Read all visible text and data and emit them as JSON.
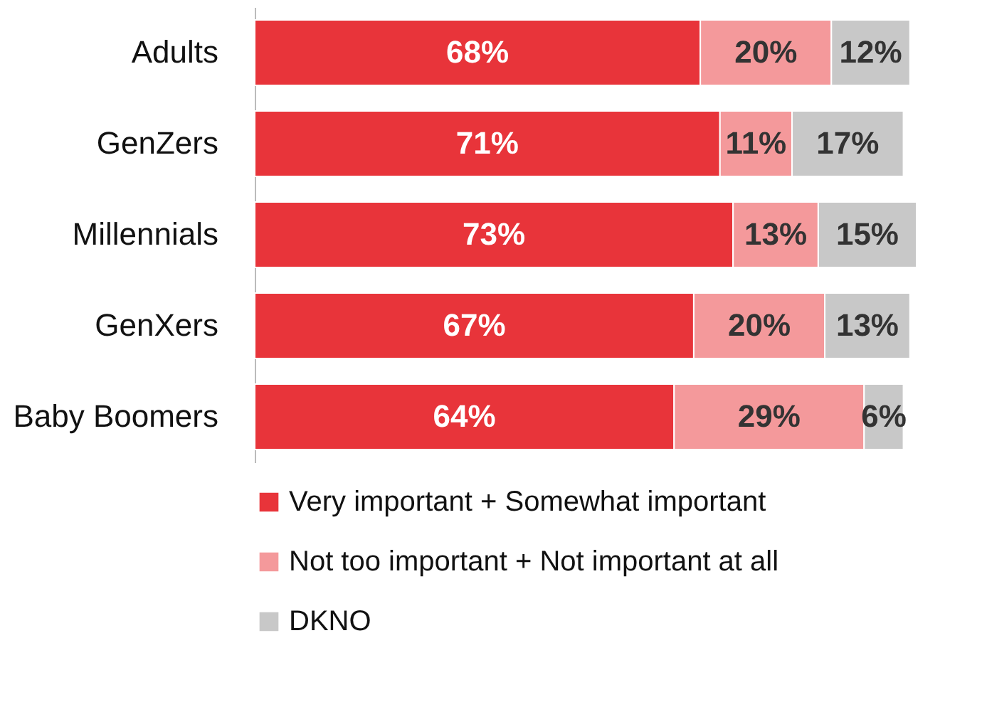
{
  "chart_data": {
    "type": "bar",
    "orientation": "horizontal",
    "stacked": true,
    "legend": "bottom",
    "categories": [
      "Adults",
      "GenZers",
      "Millennials",
      "GenXers",
      "Baby Boomers"
    ],
    "series": [
      {
        "name": "Very important + Somewhat important",
        "color": "#e8343a",
        "values": [
          68,
          71,
          73,
          67,
          64
        ],
        "value_labels": [
          "68%",
          "71%",
          "73%",
          "67%",
          "64%"
        ]
      },
      {
        "name": "Not too important + Not important at all",
        "color": "#f4999b",
        "values": [
          20,
          11,
          13,
          20,
          29
        ],
        "value_labels": [
          "20%",
          "11%",
          "13%",
          "20%",
          "29%"
        ]
      },
      {
        "name": "DKNO",
        "color": "#c8c8c8",
        "values": [
          12,
          17,
          15,
          13,
          6
        ],
        "value_labels": [
          "12%",
          "17%",
          "15%",
          "13%",
          "6%"
        ]
      }
    ]
  }
}
